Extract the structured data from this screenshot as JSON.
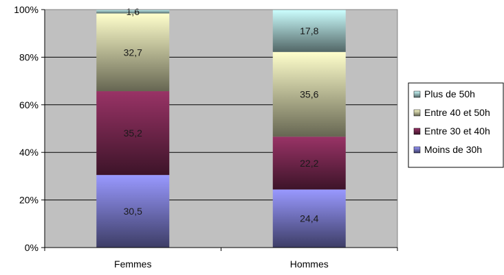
{
  "chart_data": {
    "type": "bar",
    "stacked": true,
    "normalized": true,
    "categories": [
      "Femmes",
      "Hommes"
    ],
    "series": [
      {
        "name": "Moins de 30h",
        "values": [
          30.5,
          24.4
        ],
        "color": "#9999ff"
      },
      {
        "name": "Entre 30 et 40h",
        "values": [
          35.2,
          22.2
        ],
        "color": "#993366"
      },
      {
        "name": "Entre 40 et 50h",
        "values": [
          32.7,
          35.6
        ],
        "color": "#ffffcc"
      },
      {
        "name": "Plus de 50h",
        "values": [
          1.6,
          17.8
        ],
        "color": "#ccffff"
      }
    ],
    "data_labels": [
      [
        "30,5",
        "24,4"
      ],
      [
        "35,2",
        "22,2"
      ],
      [
        "32,7",
        "35,6"
      ],
      [
        "1,6",
        "17,8"
      ]
    ],
    "y_ticks": [
      "0%",
      "20%",
      "40%",
      "60%",
      "80%",
      "100%"
    ],
    "ylim": [
      0,
      100
    ],
    "grid": true,
    "legend_position": "right",
    "legend_order": [
      "Plus de 50h",
      "Entre 40 et 50h",
      "Entre 30 et 40h",
      "Moins de 30h"
    ],
    "plot_background": "#c0c0c0"
  }
}
